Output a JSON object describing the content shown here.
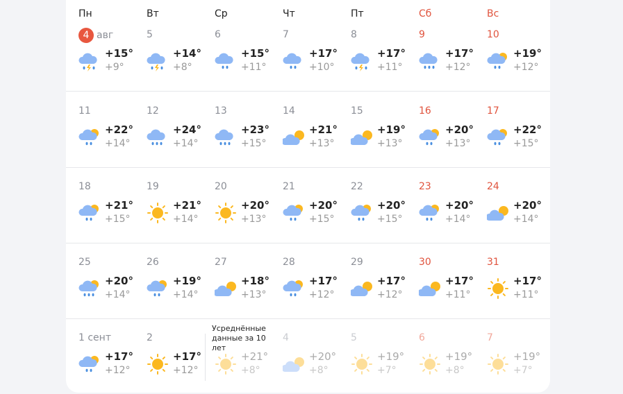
{
  "weekdays": [
    {
      "label": "Пн",
      "weekend": false
    },
    {
      "label": "Вт",
      "weekend": false
    },
    {
      "label": "Ср",
      "weekend": false
    },
    {
      "label": "Чт",
      "weekend": false
    },
    {
      "label": "Пт",
      "weekend": false
    },
    {
      "label": "Сб",
      "weekend": true
    },
    {
      "label": "Вс",
      "weekend": true
    }
  ],
  "today_month": "авг",
  "averages_note": "Усреднённые данные за 10 лет",
  "colors": {
    "weekend": "#e0533d",
    "today_badge": "#e8573f",
    "cloud": "#8fb8f5",
    "sun": "#fbb820",
    "drop": "#4a8fe0"
  },
  "weeks": [
    [
      {
        "date": "4",
        "today": true,
        "icon": "storm",
        "hi": "+15°",
        "lo": "+9°"
      },
      {
        "date": "5",
        "icon": "storm",
        "hi": "+14°",
        "lo": "+8°"
      },
      {
        "date": "6",
        "icon": "rain2",
        "hi": "+15°",
        "lo": "+11°"
      },
      {
        "date": "7",
        "icon": "rain2",
        "hi": "+17°",
        "lo": "+10°"
      },
      {
        "date": "8",
        "icon": "storm",
        "hi": "+17°",
        "lo": "+11°"
      },
      {
        "date": "9",
        "icon": "rain3",
        "hi": "+17°",
        "lo": "+12°"
      },
      {
        "date": "10",
        "icon": "pc-rain2",
        "hi": "+19°",
        "lo": "+12°"
      }
    ],
    [
      {
        "date": "11",
        "icon": "pc-rain2",
        "hi": "+22°",
        "lo": "+14°"
      },
      {
        "date": "12",
        "icon": "rain3",
        "hi": "+24°",
        "lo": "+14°"
      },
      {
        "date": "13",
        "icon": "rain3",
        "hi": "+23°",
        "lo": "+15°"
      },
      {
        "date": "14",
        "icon": "pc",
        "hi": "+21°",
        "lo": "+13°"
      },
      {
        "date": "15",
        "icon": "pc",
        "hi": "+19°",
        "lo": "+13°"
      },
      {
        "date": "16",
        "icon": "pc-rain2",
        "hi": "+20°",
        "lo": "+13°"
      },
      {
        "date": "17",
        "icon": "pc-rain2",
        "hi": "+22°",
        "lo": "+15°"
      }
    ],
    [
      {
        "date": "18",
        "icon": "pc-rain2",
        "hi": "+21°",
        "lo": "+15°"
      },
      {
        "date": "19",
        "icon": "sun",
        "hi": "+21°",
        "lo": "+14°"
      },
      {
        "date": "20",
        "icon": "sun",
        "hi": "+20°",
        "lo": "+13°"
      },
      {
        "date": "21",
        "icon": "pc-rain2",
        "hi": "+20°",
        "lo": "+15°"
      },
      {
        "date": "22",
        "icon": "pc-rain2",
        "hi": "+20°",
        "lo": "+15°"
      },
      {
        "date": "23",
        "icon": "pc-rain2",
        "hi": "+20°",
        "lo": "+14°"
      },
      {
        "date": "24",
        "icon": "pc",
        "hi": "+20°",
        "lo": "+14°"
      }
    ],
    [
      {
        "date": "25",
        "icon": "pc-rain3",
        "hi": "+20°",
        "lo": "+14°"
      },
      {
        "date": "26",
        "icon": "pc-rain2",
        "hi": "+19°",
        "lo": "+14°"
      },
      {
        "date": "27",
        "icon": "pc",
        "hi": "+18°",
        "lo": "+13°"
      },
      {
        "date": "28",
        "icon": "pc-rain2",
        "hi": "+17°",
        "lo": "+12°"
      },
      {
        "date": "29",
        "icon": "pc",
        "hi": "+17°",
        "lo": "+12°"
      },
      {
        "date": "30",
        "icon": "pc",
        "hi": "+17°",
        "lo": "+11°"
      },
      {
        "date": "31",
        "icon": "sun",
        "hi": "+17°",
        "lo": "+11°"
      }
    ],
    [
      {
        "date": "1 сент",
        "icon": "pc-rain2",
        "hi": "+17°",
        "lo": "+12°"
      },
      {
        "date": "2",
        "icon": "sun",
        "hi": "+17°",
        "lo": "+12°"
      },
      {
        "date": "",
        "icon": "sun",
        "hi": "+21°",
        "lo": "+8°",
        "faded": true
      },
      {
        "date": "4",
        "icon": "pc",
        "hi": "+20°",
        "lo": "+8°",
        "faded": true
      },
      {
        "date": "5",
        "icon": "sun",
        "hi": "+19°",
        "lo": "+7°",
        "faded": true
      },
      {
        "date": "6",
        "icon": "sun",
        "hi": "+19°",
        "lo": "+8°",
        "faded": true
      },
      {
        "date": "7",
        "icon": "sun",
        "hi": "+19°",
        "lo": "+7°",
        "faded": true
      }
    ]
  ]
}
